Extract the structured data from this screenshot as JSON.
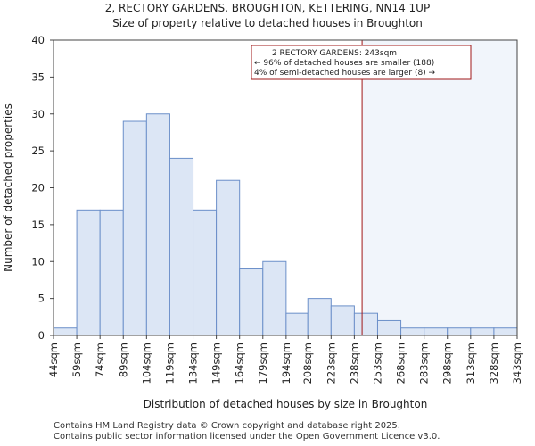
{
  "chart_data": {
    "type": "bar",
    "title_line1": "2, RECTORY GARDENS, BROUGHTON, KETTERING, NN14 1UP",
    "title_line2": "Size of property relative to detached houses in Broughton",
    "xlabel": "Distribution of detached houses by size in Broughton",
    "ylabel": "Number of detached properties",
    "ylim": [
      0,
      40
    ],
    "yticks": [
      0,
      5,
      10,
      15,
      20,
      25,
      30,
      35,
      40
    ],
    "xlim": [
      44,
      343
    ],
    "bin_edges": [
      44,
      59,
      74,
      89,
      104,
      119,
      134,
      149,
      164,
      179,
      194,
      208,
      223,
      238,
      253,
      268,
      283,
      298,
      313,
      328,
      343
    ],
    "xtick_labels": [
      "44sqm",
      "59sqm",
      "74sqm",
      "89sqm",
      "104sqm",
      "119sqm",
      "134sqm",
      "149sqm",
      "164sqm",
      "179sqm",
      "194sqm",
      "208sqm",
      "223sqm",
      "238sqm",
      "253sqm",
      "268sqm",
      "283sqm",
      "298sqm",
      "313sqm",
      "328sqm",
      "343sqm"
    ],
    "values": [
      1,
      17,
      17,
      29,
      30,
      24,
      17,
      21,
      9,
      10,
      3,
      5,
      4,
      3,
      2,
      1,
      1,
      1,
      1,
      1
    ],
    "bar_fill": "#dce6f5",
    "bar_edge": "#6b8fc9",
    "marker": {
      "x": 243,
      "color": "#a01818",
      "shade_color": "#e8eef9",
      "annotation": [
        "2 RECTORY GARDENS: 243sqm",
        "← 96% of detached houses are smaller (188)",
        "4% of semi-detached houses are larger (8) →"
      ]
    },
    "grid": false
  },
  "footer": {
    "line1": "Contains HM Land Registry data © Crown copyright and database right 2025.",
    "line2": "Contains public sector information licensed under the Open Government Licence v3.0."
  }
}
